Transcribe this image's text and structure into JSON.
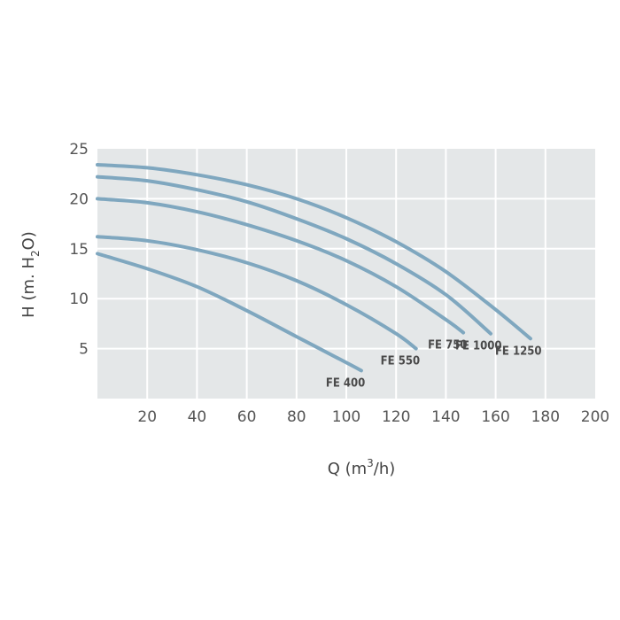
{
  "chart_data": {
    "type": "line",
    "xlabel": {
      "pre": "Q (m",
      "sup": "3",
      "post": "/h)"
    },
    "ylabel": {
      "pre": "H (m. H",
      "sub": "2",
      "post": "O)"
    },
    "xlim": [
      0,
      200
    ],
    "ylim": [
      0,
      25
    ],
    "xticks": [
      "20",
      "40",
      "60",
      "80",
      "100",
      "120",
      "140",
      "160",
      "180",
      "200"
    ],
    "yticks": [
      "5",
      "10",
      "15",
      "20",
      "25"
    ],
    "grid": true,
    "background_color": "#e4e7e8",
    "line_color": "#7fa7bf",
    "series": [
      {
        "name": "FE 400",
        "x": [
          0,
          20,
          40,
          60,
          80,
          100,
          106
        ],
        "y": [
          14.5,
          13.0,
          11.2,
          8.8,
          6.2,
          3.6,
          2.8
        ]
      },
      {
        "name": "FE 550",
        "x": [
          0,
          20,
          40,
          60,
          80,
          100,
          120,
          128
        ],
        "y": [
          16.2,
          15.8,
          14.9,
          13.6,
          11.8,
          9.4,
          6.5,
          5.0
        ]
      },
      {
        "name": "FE 750",
        "x": [
          0,
          20,
          40,
          60,
          80,
          100,
          120,
          140,
          147
        ],
        "y": [
          20.0,
          19.6,
          18.7,
          17.4,
          15.8,
          13.8,
          11.2,
          7.9,
          6.6
        ]
      },
      {
        "name": "FE 1000",
        "x": [
          0,
          20,
          40,
          60,
          80,
          100,
          120,
          140,
          158
        ],
        "y": [
          22.2,
          21.8,
          20.9,
          19.7,
          18.0,
          16.0,
          13.5,
          10.4,
          6.5
        ]
      },
      {
        "name": "FE 1250",
        "x": [
          0,
          20,
          40,
          60,
          80,
          100,
          120,
          140,
          160,
          174
        ],
        "y": [
          23.4,
          23.1,
          22.4,
          21.4,
          20.0,
          18.1,
          15.7,
          12.7,
          8.9,
          6.0
        ]
      }
    ]
  }
}
